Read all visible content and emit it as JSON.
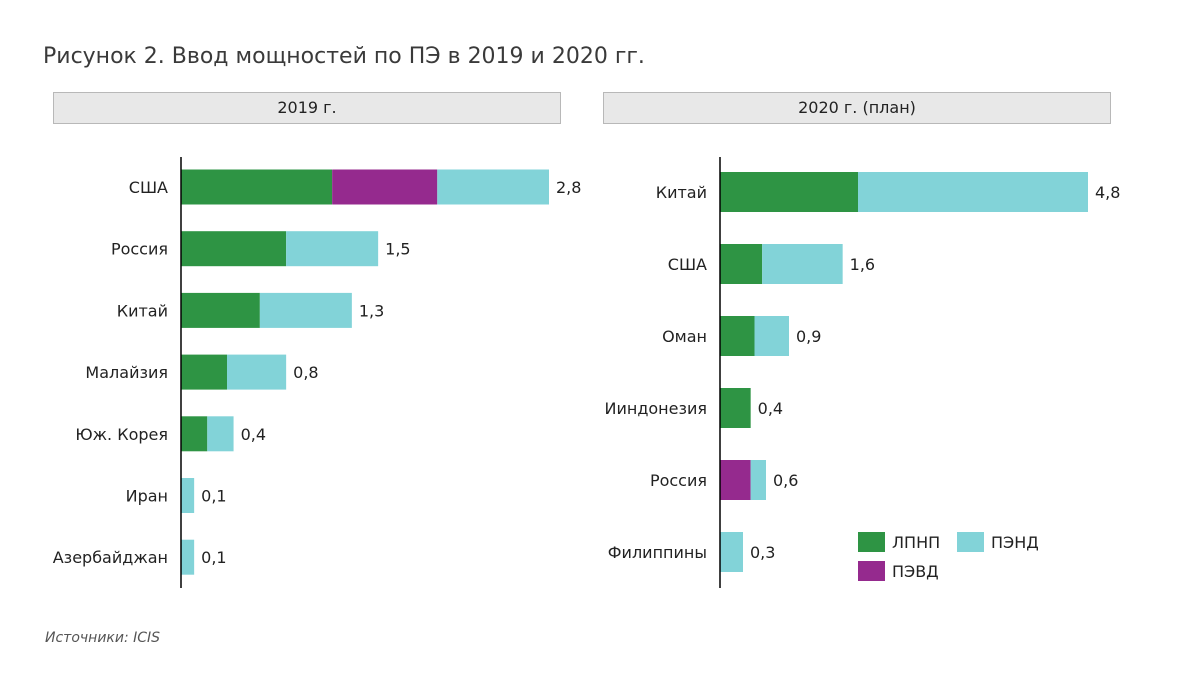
{
  "figure": {
    "title": "Рисунок 2. Ввод мощностей по ПЭ в 2019 и 2020 гг.",
    "source": "Источники: ICIS"
  },
  "colors": {
    "ЛПНП": "#2e9444",
    "ПЭВД": "#952a8e",
    "ПЭНД": "#82d3d8"
  },
  "chart_data": [
    {
      "type": "bar",
      "orientation": "horizontal",
      "stacked": true,
      "title": "2019 г.",
      "categories": [
        "США",
        "Россия",
        "Китай",
        "Малайзия",
        "Юж. Корея",
        "Иран",
        "Азербайджан"
      ],
      "series": [
        {
          "name": "ЛПНП",
          "values": [
            1.15,
            0.8,
            0.6,
            0.35,
            0.2,
            0,
            0
          ]
        },
        {
          "name": "ПЭВД",
          "values": [
            0.8,
            0,
            0,
            0,
            0,
            0,
            0
          ]
        },
        {
          "name": "ПЭНД",
          "values": [
            0.85,
            0.7,
            0.7,
            0.45,
            0.2,
            0.1,
            0.1
          ]
        }
      ],
      "totals": [
        "2,8",
        "1,5",
        "1,3",
        "0,8",
        "0,4",
        "0,1",
        "0,1"
      ],
      "xlim": [
        0,
        2.8
      ]
    },
    {
      "type": "bar",
      "orientation": "horizontal",
      "stacked": true,
      "title": "2020 г. (план)",
      "categories": [
        "Китай",
        "США",
        "Оман",
        "Ииндонезия",
        "Россия",
        "Филиппины"
      ],
      "series": [
        {
          "name": "ЛПНП",
          "values": [
            1.8,
            0.55,
            0.45,
            0.4,
            0,
            0
          ]
        },
        {
          "name": "ПЭВД",
          "values": [
            0,
            0,
            0,
            0,
            0.4,
            0
          ]
        },
        {
          "name": "ПЭНД",
          "values": [
            3.0,
            1.05,
            0.45,
            0,
            0.2,
            0.3
          ]
        }
      ],
      "totals": [
        "4,8",
        "1,6",
        "0,9",
        "0,4",
        "0,6",
        "0,3"
      ],
      "xlim": [
        0,
        4.8
      ],
      "legend": {
        "placement": "bottom-right",
        "entries": [
          "ЛПНП",
          "ПЭНД",
          "ПЭВД"
        ]
      }
    }
  ]
}
